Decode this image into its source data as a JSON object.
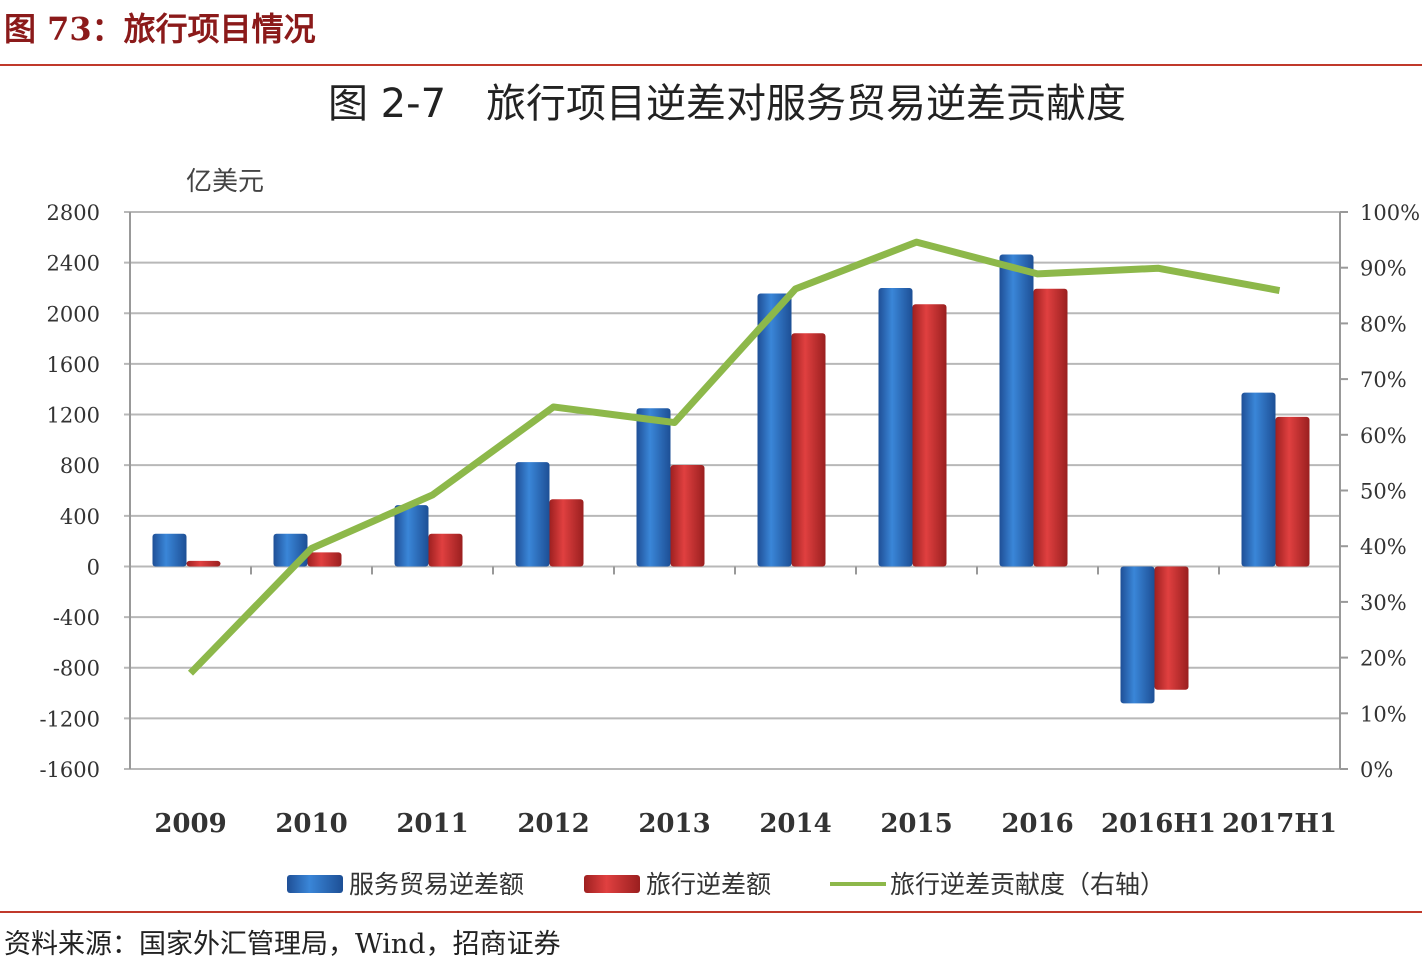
{
  "header": {
    "figure_label": "图 73：旅行项目情况"
  },
  "source": "资料来源：国家外汇管理局，Wind，招商证券",
  "chart_data": {
    "type": "bar",
    "title": "图 2-7　旅行项目逆差对服务贸易逆差贡献度",
    "ylabel": "亿美元",
    "ylim": [
      -1600,
      2800
    ],
    "yticks": [
      "2800",
      "2400",
      "2000",
      "1600",
      "1200",
      "800",
      "400",
      "0",
      "-400",
      "-800",
      "-1200",
      "-1600"
    ],
    "y2lim": [
      0,
      100
    ],
    "y2ticks": [
      "100%",
      "90%",
      "80%",
      "70%",
      "60%",
      "50%",
      "40%",
      "30%",
      "20%",
      "10%",
      "0%"
    ],
    "grid": true,
    "legend_position": "bottom",
    "categories": [
      "2009",
      "2010",
      "2011",
      "2012",
      "2013",
      "2014",
      "2015",
      "2016",
      "2016H1",
      "2017H1"
    ],
    "series": [
      {
        "name": "服务贸易逆差额",
        "type": "bar",
        "axis": "left",
        "color": "#2e6fc0",
        "values": [
          258,
          258,
          484,
          824,
          1250,
          2156,
          2200,
          2464,
          -1082,
          1373
        ]
      },
      {
        "name": "旅行逆差额",
        "type": "bar",
        "axis": "left",
        "color": "#d03434",
        "values": [
          44,
          111,
          258,
          531,
          801,
          1842,
          2071,
          2194,
          -974,
          1182
        ]
      },
      {
        "name": "旅行逆差贡献度（右轴）",
        "type": "line",
        "axis": "right",
        "color": "#8db84a",
        "values": [
          17.2,
          39.6,
          49.2,
          65.0,
          62.2,
          86.2,
          94.6,
          88.9,
          89.9,
          85.9
        ]
      }
    ]
  }
}
